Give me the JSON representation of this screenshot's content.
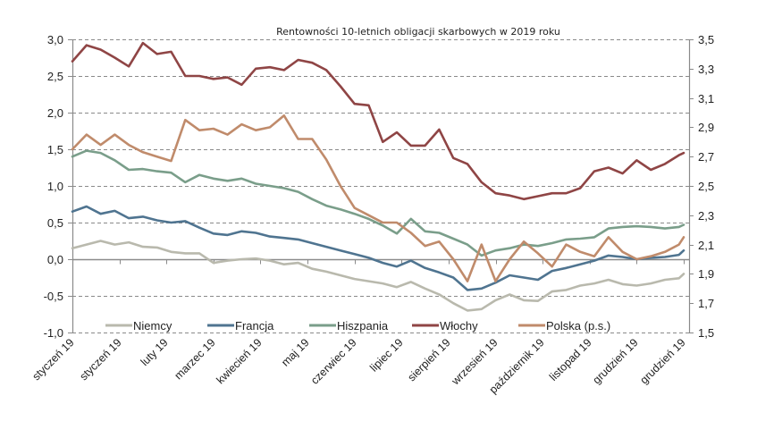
{
  "chart_data": {
    "type": "line",
    "title": "Rentowności 10-letnich obligacji skarbowych w 2019 roku",
    "xlabel": "",
    "ylabel": "",
    "y_left": {
      "ylim": [
        -1.0,
        3.0
      ],
      "ticks": [
        -1.0,
        -0.5,
        0.0,
        0.5,
        1.0,
        1.5,
        2.0,
        2.5,
        3.0
      ],
      "tick_labels": [
        "-1,0",
        "-0,5",
        "0,0",
        "0,5",
        "1,0",
        "1,5",
        "2,0",
        "2,5",
        "3,0"
      ]
    },
    "y_right": {
      "ylim": [
        1.5,
        3.5
      ],
      "ticks": [
        1.5,
        1.7,
        1.9,
        2.1,
        2.3,
        2.5,
        2.7,
        2.9,
        3.1,
        3.3,
        3.5
      ],
      "tick_labels": [
        "1,5",
        "1,7",
        "1,9",
        "2,1",
        "2,3",
        "2,5",
        "2,7",
        "2,9",
        "3,1",
        "3,3",
        "3,5"
      ]
    },
    "x_tick_labels": [
      "styczeń 19",
      "styczeń 19",
      "luty 19",
      "marzec 19",
      "kwiecień 19",
      "maj 19",
      "czerwiec 19",
      "lipiec 19",
      "sierpień 19",
      "wrzesień 19",
      "październik 19",
      "listopad 19",
      "grudzień 19",
      "grudzień 19"
    ],
    "grid": "horizontal-dashed",
    "legend_position": "bottom",
    "x_range": [
      0,
      13
    ],
    "series": [
      {
        "name": "Niemcy",
        "axis": "left",
        "color": "#b9b9ad",
        "x": [
          0,
          0.3,
          0.6,
          0.9,
          1.2,
          1.5,
          1.8,
          2.1,
          2.4,
          2.7,
          3.0,
          3.3,
          3.6,
          3.9,
          4.2,
          4.5,
          4.8,
          5.1,
          5.4,
          5.7,
          6.0,
          6.3,
          6.6,
          6.9,
          7.2,
          7.5,
          7.8,
          8.1,
          8.4,
          8.7,
          9.0,
          9.3,
          9.6,
          9.9,
          10.2,
          10.5,
          10.8,
          11.1,
          11.4,
          11.7,
          12.0,
          12.3,
          12.6,
          12.9,
          13.0
        ],
        "values": [
          0.15,
          0.2,
          0.25,
          0.2,
          0.23,
          0.17,
          0.16,
          0.1,
          0.08,
          0.08,
          -0.05,
          -0.02,
          0.0,
          0.01,
          -0.02,
          -0.07,
          -0.05,
          -0.13,
          -0.17,
          -0.22,
          -0.27,
          -0.3,
          -0.33,
          -0.38,
          -0.31,
          -0.4,
          -0.48,
          -0.6,
          -0.7,
          -0.68,
          -0.56,
          -0.48,
          -0.56,
          -0.57,
          -0.44,
          -0.42,
          -0.36,
          -0.33,
          -0.28,
          -0.34,
          -0.36,
          -0.33,
          -0.28,
          -0.26,
          -0.2
        ]
      },
      {
        "name": "Francja",
        "axis": "left",
        "color": "#4f7490",
        "x": [
          0,
          0.3,
          0.6,
          0.9,
          1.2,
          1.5,
          1.8,
          2.1,
          2.4,
          2.7,
          3.0,
          3.3,
          3.6,
          3.9,
          4.2,
          4.5,
          4.8,
          5.1,
          5.4,
          5.7,
          6.0,
          6.3,
          6.6,
          6.9,
          7.2,
          7.5,
          7.8,
          8.1,
          8.4,
          8.7,
          9.0,
          9.3,
          9.6,
          9.9,
          10.2,
          10.5,
          10.8,
          11.1,
          11.4,
          11.7,
          12.0,
          12.3,
          12.6,
          12.9,
          13.0
        ],
        "values": [
          0.65,
          0.72,
          0.62,
          0.66,
          0.56,
          0.58,
          0.53,
          0.5,
          0.52,
          0.43,
          0.35,
          0.33,
          0.38,
          0.36,
          0.31,
          0.29,
          0.27,
          0.22,
          0.17,
          0.12,
          0.07,
          0.02,
          -0.05,
          -0.1,
          -0.02,
          -0.12,
          -0.18,
          -0.25,
          -0.42,
          -0.4,
          -0.32,
          -0.22,
          -0.25,
          -0.28,
          -0.16,
          -0.12,
          -0.07,
          -0.02,
          0.05,
          0.03,
          0.0,
          0.02,
          0.03,
          0.06,
          0.12
        ]
      },
      {
        "name": "Hiszpania",
        "axis": "left",
        "color": "#7a9e8a",
        "x": [
          0,
          0.3,
          0.6,
          0.9,
          1.2,
          1.5,
          1.8,
          2.1,
          2.4,
          2.7,
          3.0,
          3.3,
          3.6,
          3.9,
          4.2,
          4.5,
          4.8,
          5.1,
          5.4,
          5.7,
          6.0,
          6.3,
          6.6,
          6.9,
          7.2,
          7.5,
          7.8,
          8.1,
          8.4,
          8.7,
          9.0,
          9.3,
          9.6,
          9.9,
          10.2,
          10.5,
          10.8,
          11.1,
          11.4,
          11.7,
          12.0,
          12.3,
          12.6,
          12.9,
          13.0
        ],
        "values": [
          1.4,
          1.48,
          1.45,
          1.35,
          1.22,
          1.23,
          1.2,
          1.18,
          1.05,
          1.15,
          1.1,
          1.07,
          1.1,
          1.03,
          1.0,
          0.97,
          0.92,
          0.82,
          0.73,
          0.68,
          0.62,
          0.55,
          0.46,
          0.35,
          0.55,
          0.38,
          0.36,
          0.28,
          0.2,
          0.05,
          0.12,
          0.15,
          0.2,
          0.18,
          0.22,
          0.27,
          0.28,
          0.3,
          0.42,
          0.44,
          0.45,
          0.44,
          0.42,
          0.44,
          0.47
        ]
      },
      {
        "name": "Włochy",
        "axis": "left",
        "color": "#8f4545",
        "x": [
          0,
          0.3,
          0.6,
          0.9,
          1.2,
          1.5,
          1.8,
          2.1,
          2.4,
          2.7,
          3.0,
          3.3,
          3.6,
          3.9,
          4.2,
          4.5,
          4.8,
          5.1,
          5.4,
          5.7,
          6.0,
          6.3,
          6.6,
          6.9,
          7.2,
          7.5,
          7.8,
          8.1,
          8.4,
          8.7,
          9.0,
          9.3,
          9.6,
          9.9,
          10.2,
          10.5,
          10.8,
          11.1,
          11.4,
          11.7,
          12.0,
          12.3,
          12.6,
          12.9,
          13.0
        ],
        "values": [
          2.7,
          2.92,
          2.86,
          2.75,
          2.63,
          2.95,
          2.8,
          2.83,
          2.5,
          2.5,
          2.46,
          2.48,
          2.38,
          2.6,
          2.62,
          2.58,
          2.72,
          2.68,
          2.58,
          2.36,
          2.12,
          2.1,
          1.6,
          1.73,
          1.55,
          1.55,
          1.77,
          1.38,
          1.3,
          1.05,
          0.9,
          0.87,
          0.82,
          0.86,
          0.9,
          0.9,
          0.97,
          1.2,
          1.25,
          1.17,
          1.35,
          1.22,
          1.3,
          1.42,
          1.45
        ]
      },
      {
        "name": "Polska (p.s.)",
        "axis": "right",
        "color": "#c08b6b",
        "x": [
          0,
          0.3,
          0.6,
          0.9,
          1.2,
          1.5,
          1.8,
          2.1,
          2.4,
          2.7,
          3.0,
          3.3,
          3.6,
          3.9,
          4.2,
          4.5,
          4.8,
          5.1,
          5.4,
          5.7,
          6.0,
          6.3,
          6.6,
          6.9,
          7.2,
          7.5,
          7.8,
          8.1,
          8.4,
          8.7,
          9.0,
          9.3,
          9.6,
          9.9,
          10.2,
          10.5,
          10.8,
          11.1,
          11.4,
          11.7,
          12.0,
          12.3,
          12.6,
          12.9,
          13.0
        ],
        "values": [
          2.75,
          2.85,
          2.78,
          2.85,
          2.78,
          2.73,
          2.7,
          2.67,
          2.95,
          2.88,
          2.89,
          2.85,
          2.92,
          2.88,
          2.9,
          2.98,
          2.82,
          2.82,
          2.68,
          2.5,
          2.35,
          2.3,
          2.25,
          2.25,
          2.18,
          2.09,
          2.12,
          2.0,
          1.85,
          2.1,
          1.85,
          2.0,
          2.12,
          2.04,
          1.95,
          2.1,
          2.05,
          2.02,
          2.15,
          2.05,
          2.0,
          2.02,
          2.05,
          2.1,
          2.15
        ]
      }
    ]
  }
}
